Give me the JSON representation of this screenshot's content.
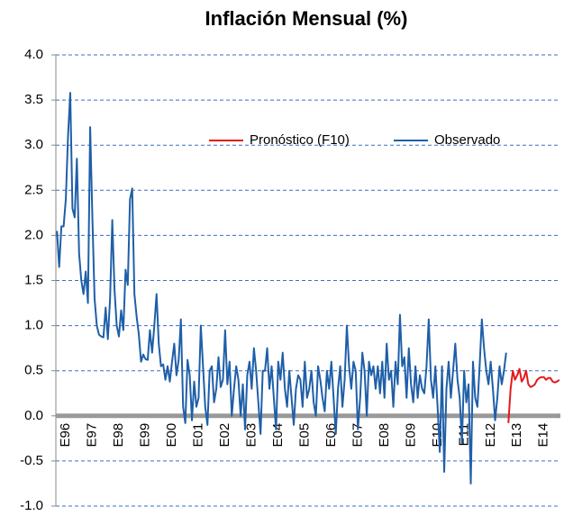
{
  "chart_data": {
    "type": "line",
    "title": "Inflación Mensual (%)",
    "categories": [
      "E96",
      null,
      null,
      null,
      null,
      null,
      null,
      null,
      null,
      null,
      null,
      null,
      "E97",
      null,
      null,
      null,
      null,
      null,
      null,
      null,
      null,
      null,
      null,
      null,
      "E98",
      null,
      null,
      null,
      null,
      null,
      null,
      null,
      null,
      null,
      null,
      null,
      "E99",
      null,
      null,
      null,
      null,
      null,
      null,
      null,
      null,
      null,
      null,
      null,
      "E00",
      null,
      null,
      null,
      null,
      null,
      null,
      null,
      null,
      null,
      null,
      null,
      "E01",
      null,
      null,
      null,
      null,
      null,
      null,
      null,
      null,
      null,
      null,
      null,
      "E02",
      null,
      null,
      null,
      null,
      null,
      null,
      null,
      null,
      null,
      null,
      null,
      "E03",
      null,
      null,
      null,
      null,
      null,
      null,
      null,
      null,
      null,
      null,
      null,
      "E04",
      null,
      null,
      null,
      null,
      null,
      null,
      null,
      null,
      null,
      null,
      null,
      "E05",
      null,
      null,
      null,
      null,
      null,
      null,
      null,
      null,
      null,
      null,
      null,
      "E06",
      null,
      null,
      null,
      null,
      null,
      null,
      null,
      null,
      null,
      null,
      null,
      "E07",
      null,
      null,
      null,
      null,
      null,
      null,
      null,
      null,
      null,
      null,
      null,
      "E08",
      null,
      null,
      null,
      null,
      null,
      null,
      null,
      null,
      null,
      null,
      null,
      "E09",
      null,
      null,
      null,
      null,
      null,
      null,
      null,
      null,
      null,
      null,
      null,
      "E10",
      null,
      null,
      null,
      null,
      null,
      null,
      null,
      null,
      null,
      null,
      null,
      "E11",
      null,
      null,
      null,
      null,
      null,
      null,
      null,
      null,
      null,
      null,
      null,
      "E12",
      null,
      null,
      null,
      null,
      null,
      null,
      null,
      null,
      null,
      null,
      null,
      "E13",
      null,
      null,
      null,
      null,
      null,
      null,
      null,
      null,
      null,
      null,
      null,
      "E14",
      null,
      null,
      null,
      null,
      null,
      null,
      null,
      null,
      null,
      null,
      null
    ],
    "series": [
      {
        "name": "Pronóstico (F10)",
        "color": "#e31a1c",
        "values": [
          null,
          null,
          null,
          null,
          null,
          null,
          null,
          null,
          null,
          null,
          null,
          null,
          null,
          null,
          null,
          null,
          null,
          null,
          null,
          null,
          null,
          null,
          null,
          null,
          null,
          null,
          null,
          null,
          null,
          null,
          null,
          null,
          null,
          null,
          null,
          null,
          null,
          null,
          null,
          null,
          null,
          null,
          null,
          null,
          null,
          null,
          null,
          null,
          null,
          null,
          null,
          null,
          null,
          null,
          null,
          null,
          null,
          null,
          null,
          null,
          null,
          null,
          null,
          null,
          null,
          null,
          null,
          null,
          null,
          null,
          null,
          null,
          null,
          null,
          null,
          null,
          null,
          null,
          null,
          null,
          null,
          null,
          null,
          null,
          null,
          null,
          null,
          null,
          null,
          null,
          null,
          null,
          null,
          null,
          null,
          null,
          null,
          null,
          null,
          null,
          null,
          null,
          null,
          null,
          null,
          null,
          null,
          null,
          null,
          null,
          null,
          null,
          null,
          null,
          null,
          null,
          null,
          null,
          null,
          null,
          null,
          null,
          null,
          null,
          null,
          null,
          null,
          null,
          null,
          null,
          null,
          null,
          null,
          null,
          null,
          null,
          null,
          null,
          null,
          null,
          null,
          null,
          null,
          null,
          null,
          null,
          null,
          null,
          null,
          null,
          null,
          null,
          null,
          null,
          null,
          null,
          null,
          null,
          null,
          null,
          null,
          null,
          null,
          null,
          null,
          null,
          null,
          null,
          null,
          null,
          null,
          null,
          null,
          null,
          null,
          null,
          null,
          null,
          null,
          null,
          null,
          null,
          null,
          null,
          null,
          null,
          null,
          null,
          null,
          null,
          null,
          null,
          null,
          null,
          null,
          null,
          null,
          null,
          null,
          null,
          null,
          null,
          null,
          null,
          -0.08,
          0.3,
          0.5,
          0.4,
          0.45,
          0.52,
          0.38,
          0.42,
          0.5,
          0.35,
          0.32,
          0.33,
          0.35,
          0.4,
          0.42,
          0.43,
          0.43,
          0.4,
          0.42,
          0.42,
          0.38,
          0.37,
          0.38,
          0.4
        ]
      },
      {
        "name": "Observado",
        "color": "#1f5fa8",
        "values": [
          2.05,
          1.65,
          2.1,
          2.1,
          2.4,
          3.1,
          3.58,
          2.3,
          2.2,
          2.85,
          1.8,
          1.5,
          1.35,
          1.6,
          1.25,
          3.2,
          2.2,
          1.3,
          1.0,
          0.9,
          0.88,
          0.87,
          1.2,
          0.85,
          1.3,
          2.17,
          1.4,
          1.0,
          0.88,
          1.17,
          0.95,
          1.62,
          1.45,
          2.4,
          2.52,
          1.35,
          1.1,
          0.9,
          0.6,
          0.68,
          0.63,
          0.62,
          0.95,
          0.7,
          1.0,
          1.35,
          0.8,
          0.55,
          0.57,
          0.4,
          0.55,
          0.38,
          0.6,
          0.8,
          0.45,
          0.62,
          1.07,
          0.1,
          -0.08,
          0.62,
          0.45,
          -0.05,
          0.38,
          0.1,
          0.2,
          1.0,
          0.55,
          0.1,
          -0.1,
          0.5,
          0.55,
          0.15,
          0.3,
          0.65,
          0.32,
          0.4,
          0.95,
          0.35,
          0.6,
          0.0,
          0.3,
          0.55,
          0.4,
          0.0,
          0.35,
          -0.15,
          0.45,
          0.6,
          0.3,
          0.75,
          0.5,
          0.15,
          -0.2,
          0.5,
          0.5,
          0.75,
          0.3,
          0.55,
          0.2,
          -0.15,
          0.6,
          0.4,
          0.7,
          0.3,
          0.1,
          0.5,
          0.2,
          -0.1,
          0.3,
          0.45,
          0.4,
          0.1,
          0.6,
          0.2,
          0.3,
          0.5,
          0.15,
          0.0,
          0.55,
          0.4,
          0.2,
          0.05,
          0.5,
          0.3,
          0.6,
          0.2,
          -0.2,
          0.3,
          0.55,
          0.1,
          0.4,
          1.0,
          0.55,
          0.3,
          0.6,
          0.5,
          -0.15,
          0.2,
          0.7,
          0.5,
          0.0,
          0.6,
          0.45,
          0.55,
          0.3,
          0.55,
          0.25,
          0.6,
          0.2,
          0.8,
          0.4,
          0.5,
          0.1,
          0.6,
          0.35,
          1.12,
          0.55,
          0.65,
          0.2,
          0.75,
          0.35,
          0.15,
          0.55,
          0.2,
          0.45,
          0.3,
          0.25,
          0.55,
          1.07,
          0.4,
          0.2,
          0.55,
          0.1,
          -0.4,
          0.55,
          -0.62,
          0.3,
          0.6,
          0.2,
          0.5,
          0.8,
          0.4,
          0.2,
          -0.3,
          0.5,
          0.15,
          0.35,
          -0.75,
          0.6,
          0.2,
          0.1,
          0.55,
          1.07,
          0.75,
          0.5,
          0.35,
          0.6,
          0.3,
          -0.05,
          0.2,
          0.55,
          0.35,
          0.5,
          0.7,
          null,
          null,
          null,
          null,
          null,
          null,
          null,
          null,
          null,
          null,
          null,
          null,
          null,
          null,
          null,
          null,
          null,
          null,
          null,
          null,
          null,
          null,
          null,
          null
        ]
      }
    ],
    "ylim": [
      -1,
      4
    ],
    "yticks": [
      {
        "value": -1,
        "label": "-1.0"
      },
      -0.5,
      {
        "value": 0,
        "label": "0.0"
      },
      0.5,
      {
        "value": 1,
        "label": "1.0"
      },
      1.5,
      {
        "value": 2,
        "label": "2.0"
      },
      2.5,
      {
        "value": 3,
        "label": "3.0"
      },
      3.5,
      {
        "value": 4,
        "label": "4.0"
      }
    ],
    "grid": true
  }
}
